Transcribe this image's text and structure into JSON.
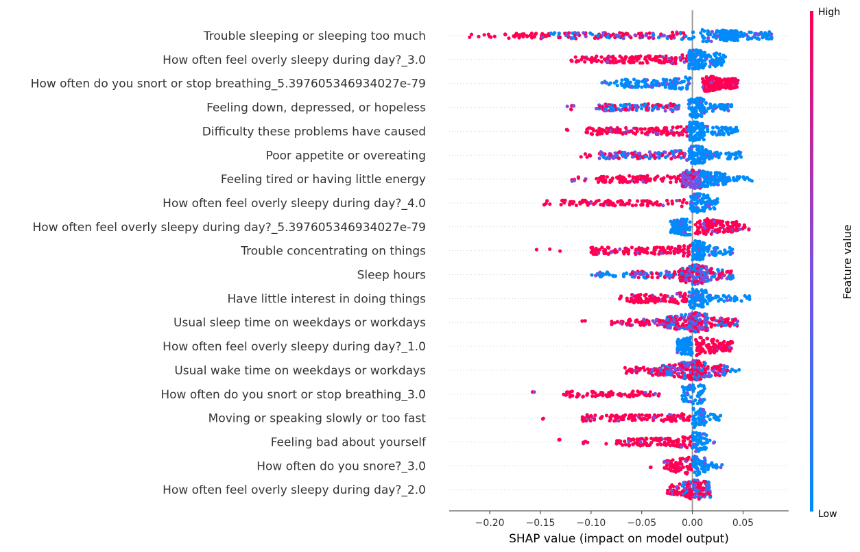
{
  "chart_data": {
    "type": "scatter",
    "subtype": "shap-beeswarm-summary",
    "title": "",
    "xlabel": "SHAP value (impact on model output)",
    "xlim": [
      -0.24,
      0.095
    ],
    "x_ticks": [
      -0.2,
      -0.15,
      -0.1,
      -0.05,
      0.0,
      0.05
    ],
    "x_tick_labels": [
      "−0.20",
      "−0.15",
      "−0.10",
      "−0.05",
      "0.00",
      "0.05"
    ],
    "zero_line": 0.0,
    "grid": "dotted horizontal per feature",
    "colorbar": {
      "title": "Feature value",
      "high_label": "High",
      "low_label": "Low",
      "high_color": "#ff0052",
      "mid_color": "#7e4ee0",
      "low_color": "#008bfb",
      "placement": "right"
    },
    "features": [
      {
        "name": "Trouble sleeping or sleeping too much",
        "segments": [
          [
            -0.225,
            -0.195,
            "high",
            8
          ],
          [
            -0.185,
            -0.14,
            "high",
            40
          ],
          [
            -0.14,
            -0.07,
            "mixed",
            70
          ],
          [
            -0.07,
            -0.005,
            "mixed",
            60
          ],
          [
            -0.005,
            0.002,
            "low",
            6
          ],
          [
            0.008,
            0.03,
            "low",
            40
          ],
          [
            0.03,
            0.045,
            "low",
            120
          ],
          [
            0.045,
            0.08,
            "low",
            55
          ]
        ]
      },
      {
        "name": "How often feel overly sleepy during day?_3.0",
        "segments": [
          [
            -0.12,
            -0.095,
            "high",
            20
          ],
          [
            -0.095,
            -0.005,
            "high",
            120
          ],
          [
            -0.004,
            0.01,
            "low",
            90
          ],
          [
            0.01,
            0.033,
            "low",
            60
          ]
        ]
      },
      {
        "name": "How often do you snort or stop breathing_5.397605346934027e-79",
        "segments": [
          [
            -0.09,
            -0.07,
            "low",
            10
          ],
          [
            -0.07,
            -0.002,
            "low",
            120
          ],
          [
            0.01,
            0.025,
            "high",
            130
          ],
          [
            0.025,
            0.045,
            "high",
            80
          ]
        ]
      },
      {
        "name": "Feeling down, depressed, or hopeless",
        "segments": [
          [
            -0.125,
            -0.115,
            "high",
            5
          ],
          [
            -0.095,
            -0.01,
            "mixed",
            110
          ],
          [
            -0.004,
            0.012,
            "low",
            90
          ],
          [
            0.012,
            0.04,
            "low",
            40
          ]
        ]
      },
      {
        "name": "Difficulty these problems have caused",
        "segments": [
          [
            -0.125,
            -0.12,
            "high",
            2
          ],
          [
            -0.105,
            -0.005,
            "high",
            130
          ],
          [
            -0.003,
            0.012,
            "low",
            90
          ],
          [
            0.012,
            0.045,
            "low",
            50
          ]
        ]
      },
      {
        "name": "Poor appetite or overeating",
        "segments": [
          [
            -0.11,
            -0.1,
            "high",
            5
          ],
          [
            -0.092,
            -0.003,
            "mixed",
            120
          ],
          [
            -0.003,
            0.012,
            "low",
            90
          ],
          [
            0.012,
            0.048,
            "low",
            50
          ]
        ]
      },
      {
        "name": "Feeling tired or having little energy",
        "segments": [
          [
            -0.12,
            -0.105,
            "high",
            8
          ],
          [
            -0.095,
            -0.01,
            "high",
            100
          ],
          [
            -0.01,
            0.008,
            "mid",
            150
          ],
          [
            0.008,
            0.035,
            "low",
            110
          ],
          [
            0.035,
            0.06,
            "low",
            20
          ]
        ]
      },
      {
        "name": "How often feel overly sleepy during day?_4.0",
        "segments": [
          [
            -0.15,
            -0.14,
            "high",
            5
          ],
          [
            -0.13,
            -0.005,
            "high",
            100
          ],
          [
            -0.002,
            0.012,
            "low",
            70
          ],
          [
            0.012,
            0.025,
            "low",
            30
          ]
        ]
      },
      {
        "name": "How often feel overly sleepy during day?_5.397605346934027e-79",
        "segments": [
          [
            -0.022,
            -0.002,
            "low",
            100
          ],
          [
            0.003,
            0.045,
            "high",
            110
          ],
          [
            0.045,
            0.057,
            "high",
            10
          ]
        ]
      },
      {
        "name": "Trouble concentrating on things",
        "segments": [
          [
            -0.158,
            -0.13,
            "high",
            3
          ],
          [
            -0.1,
            -0.002,
            "high",
            130
          ],
          [
            0.0,
            0.012,
            "low",
            80
          ],
          [
            0.012,
            0.04,
            "low",
            40
          ]
        ]
      },
      {
        "name": "Sleep hours",
        "segments": [
          [
            -0.1,
            -0.06,
            "low",
            25
          ],
          [
            -0.06,
            -0.012,
            "mixed",
            60
          ],
          [
            -0.012,
            0.015,
            "mixed",
            160
          ],
          [
            0.015,
            0.04,
            "mixed",
            50
          ]
        ]
      },
      {
        "name": "Have little interest in doing things",
        "segments": [
          [
            -0.075,
            -0.07,
            "high",
            3
          ],
          [
            -0.065,
            -0.003,
            "high",
            110
          ],
          [
            -0.003,
            0.015,
            "low",
            80
          ],
          [
            0.015,
            0.06,
            "low",
            35
          ]
        ]
      },
      {
        "name": "Usual sleep time on weekdays or workdays",
        "segments": [
          [
            -0.11,
            -0.1,
            "high",
            2
          ],
          [
            -0.08,
            -0.03,
            "high",
            50
          ],
          [
            -0.03,
            -0.003,
            "mixed",
            90
          ],
          [
            -0.003,
            0.015,
            "mixed",
            110
          ],
          [
            0.015,
            0.045,
            "mixed",
            50
          ]
        ]
      },
      {
        "name": "How often feel overly sleepy during day?_1.0",
        "segments": [
          [
            -0.015,
            0.0,
            "low",
            90
          ],
          [
            0.003,
            0.04,
            "high",
            110
          ]
        ]
      },
      {
        "name": "Usual wake time on weekdays or workdays",
        "segments": [
          [
            -0.07,
            -0.04,
            "high",
            30
          ],
          [
            -0.04,
            -0.01,
            "mixed",
            80
          ],
          [
            -0.01,
            0.012,
            "mixed",
            150
          ],
          [
            0.012,
            0.035,
            "mixed",
            50
          ],
          [
            0.035,
            0.05,
            "low",
            5
          ]
        ]
      },
      {
        "name": "How often do you snort or stop breathing_3.0",
        "segments": [
          [
            -0.16,
            -0.155,
            "high",
            2
          ],
          [
            -0.128,
            -0.03,
            "high",
            80
          ],
          [
            -0.01,
            0.012,
            "low",
            60
          ]
        ]
      },
      {
        "name": "Moving or speaking slowly or too fast",
        "segments": [
          [
            -0.148,
            -0.146,
            "high",
            2
          ],
          [
            -0.11,
            -0.002,
            "high",
            120
          ],
          [
            0.0,
            0.012,
            "low",
            60
          ],
          [
            0.012,
            0.028,
            "low",
            15
          ]
        ]
      },
      {
        "name": "Feeling bad about yourself",
        "segments": [
          [
            -0.133,
            -0.13,
            "high",
            2
          ],
          [
            -0.108,
            -0.085,
            "high",
            6
          ],
          [
            -0.075,
            0.0,
            "high",
            120
          ],
          [
            0.0,
            0.015,
            "low",
            60
          ],
          [
            0.015,
            0.022,
            "low",
            3
          ]
        ]
      },
      {
        "name": "How often do you snore?_3.0",
        "segments": [
          [
            -0.042,
            -0.04,
            "high",
            2
          ],
          [
            -0.028,
            0.0,
            "high",
            70
          ],
          [
            0.0,
            0.015,
            "low",
            60
          ],
          [
            0.015,
            0.03,
            "low",
            15
          ]
        ]
      },
      {
        "name": "How often feel overly sleepy during day?_2.0",
        "segments": [
          [
            -0.025,
            -0.01,
            "high",
            30
          ],
          [
            -0.01,
            0.008,
            "mixed",
            110
          ],
          [
            0.008,
            0.018,
            "mixed",
            40
          ]
        ]
      }
    ]
  }
}
